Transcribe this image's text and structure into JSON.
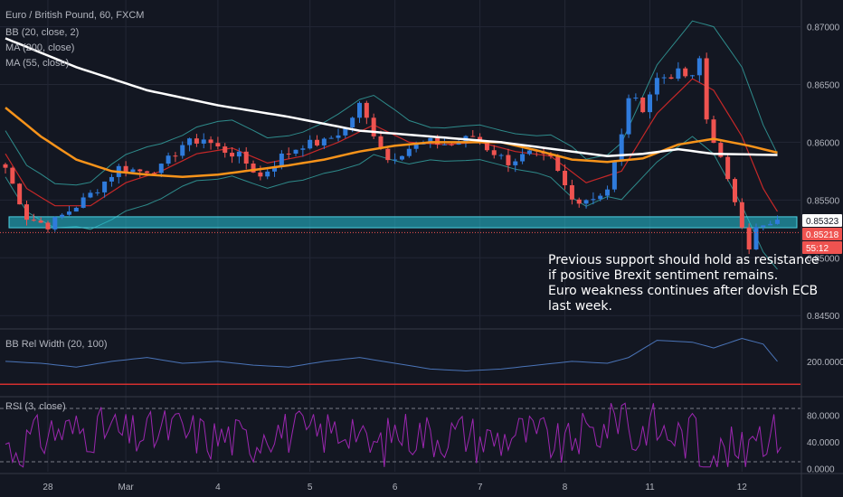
{
  "chart_data": {
    "type": "candlestick",
    "title": "Euro / British Pound, 60, FXCM",
    "indicator_labels": [
      "BB (20, close, 2)",
      "MA (200, close)",
      "MA (55, close)"
    ],
    "price_axis": {
      "min": 0.844,
      "max": 0.872,
      "ticks": [
        "0.87000",
        "0.86500",
        "0.86000",
        "0.85500",
        "0.85000",
        "0.84500"
      ]
    },
    "x_ticks": [
      {
        "label": "28",
        "bar": 6
      },
      {
        "label": "Mar",
        "bar": 17
      },
      {
        "label": "4",
        "bar": 30
      },
      {
        "label": "5",
        "bar": 43
      },
      {
        "label": "6",
        "bar": 55
      },
      {
        "label": "7",
        "bar": 67
      },
      {
        "label": "8",
        "bar": 79
      },
      {
        "label": "11",
        "bar": 91
      },
      {
        "label": "12",
        "bar": 104
      }
    ],
    "bar_count": 110,
    "price_waypoints": [
      [
        0,
        0.8578
      ],
      [
        3,
        0.8535
      ],
      [
        6,
        0.8528
      ],
      [
        10,
        0.8545
      ],
      [
        13,
        0.856
      ],
      [
        16,
        0.8578
      ],
      [
        19,
        0.8575
      ],
      [
        22,
        0.8578
      ],
      [
        25,
        0.8598
      ],
      [
        28,
        0.8603
      ],
      [
        30,
        0.8595
      ],
      [
        33,
        0.8588
      ],
      [
        36,
        0.857
      ],
      [
        39,
        0.8588
      ],
      [
        42,
        0.8598
      ],
      [
        45,
        0.86
      ],
      [
        48,
        0.8612
      ],
      [
        50,
        0.8632
      ],
      [
        52,
        0.8608
      ],
      [
        54,
        0.8585
      ],
      [
        57,
        0.8595
      ],
      [
        60,
        0.86
      ],
      [
        63,
        0.8598
      ],
      [
        66,
        0.8605
      ],
      [
        68,
        0.8595
      ],
      [
        71,
        0.8583
      ],
      [
        74,
        0.859
      ],
      [
        77,
        0.8585
      ],
      [
        80,
        0.855
      ],
      [
        83,
        0.8552
      ],
      [
        85,
        0.856
      ],
      [
        87,
        0.8605
      ],
      [
        88,
        0.864
      ],
      [
        90,
        0.863
      ],
      [
        92,
        0.8655
      ],
      [
        95,
        0.866
      ],
      [
        97,
        0.8655
      ],
      [
        98,
        0.8672
      ],
      [
        99,
        0.862
      ],
      [
        101,
        0.8585
      ],
      [
        102,
        0.8565
      ],
      [
        103,
        0.855
      ],
      [
        104,
        0.853
      ],
      [
        105,
        0.851
      ],
      [
        106,
        0.8525
      ],
      [
        108,
        0.8528
      ],
      [
        109,
        0.853
      ]
    ],
    "ma200_waypoints": [
      [
        0,
        0.869
      ],
      [
        10,
        0.8665
      ],
      [
        20,
        0.8645
      ],
      [
        30,
        0.8632
      ],
      [
        40,
        0.8622
      ],
      [
        50,
        0.861
      ],
      [
        60,
        0.8605
      ],
      [
        70,
        0.86
      ],
      [
        80,
        0.8592
      ],
      [
        85,
        0.8588
      ],
      [
        90,
        0.859
      ],
      [
        95,
        0.8594
      ],
      [
        100,
        0.859
      ],
      [
        109,
        0.8589
      ]
    ],
    "ma55_waypoints": [
      [
        0,
        0.863
      ],
      [
        5,
        0.8605
      ],
      [
        10,
        0.8585
      ],
      [
        15,
        0.8575
      ],
      [
        20,
        0.8572
      ],
      [
        25,
        0.857
      ],
      [
        30,
        0.8572
      ],
      [
        40,
        0.858
      ],
      [
        45,
        0.8585
      ],
      [
        50,
        0.8592
      ],
      [
        55,
        0.8597
      ],
      [
        60,
        0.86
      ],
      [
        70,
        0.86
      ],
      [
        75,
        0.8593
      ],
      [
        80,
        0.8585
      ],
      [
        85,
        0.8583
      ],
      [
        90,
        0.8586
      ],
      [
        95,
        0.8598
      ],
      [
        100,
        0.8603
      ],
      [
        105,
        0.8597
      ],
      [
        109,
        0.8591
      ]
    ],
    "bb_basis_waypoints": [
      [
        0,
        0.859
      ],
      [
        3,
        0.856
      ],
      [
        7,
        0.8545
      ],
      [
        12,
        0.8545
      ],
      [
        17,
        0.8565
      ],
      [
        22,
        0.8575
      ],
      [
        27,
        0.859
      ],
      [
        32,
        0.8595
      ],
      [
        37,
        0.8582
      ],
      [
        42,
        0.8588
      ],
      [
        47,
        0.86
      ],
      [
        52,
        0.8615
      ],
      [
        57,
        0.86
      ],
      [
        62,
        0.8598
      ],
      [
        67,
        0.86
      ],
      [
        72,
        0.8592
      ],
      [
        77,
        0.8588
      ],
      [
        82,
        0.8565
      ],
      [
        87,
        0.8575
      ],
      [
        92,
        0.8625
      ],
      [
        97,
        0.8655
      ],
      [
        100,
        0.8645
      ],
      [
        104,
        0.8605
      ],
      [
        107,
        0.856
      ],
      [
        109,
        0.854
      ]
    ],
    "bb_width_waypoints": [
      [
        0,
        0.002
      ],
      [
        5,
        0.002
      ],
      [
        10,
        0.0018
      ],
      [
        15,
        0.0024
      ],
      [
        20,
        0.0025
      ],
      [
        25,
        0.0022
      ],
      [
        30,
        0.0025
      ],
      [
        35,
        0.0023
      ],
      [
        40,
        0.002
      ],
      [
        45,
        0.0022
      ],
      [
        50,
        0.0028
      ],
      [
        55,
        0.0022
      ],
      [
        60,
        0.0014
      ],
      [
        65,
        0.0015
      ],
      [
        70,
        0.0015
      ],
      [
        75,
        0.0016
      ],
      [
        80,
        0.0022
      ],
      [
        85,
        0.0018
      ],
      [
        88,
        0.0028
      ],
      [
        92,
        0.0042
      ],
      [
        97,
        0.005
      ],
      [
        100,
        0.0055
      ],
      [
        104,
        0.006
      ],
      [
        107,
        0.0055
      ],
      [
        109,
        0.005
      ]
    ],
    "support_zone": {
      "top": 0.85355,
      "bottom": 0.8526
    },
    "current_price": 0.85218,
    "price_tags": [
      {
        "text": "0.85323",
        "value": 0.85323,
        "bg": "#ffffff",
        "fg": "#131722"
      },
      {
        "text": "0.85218",
        "value": 0.85218,
        "bg": "#ef5350",
        "fg": "#ffffff"
      },
      {
        "text": "55:12",
        "value": 0.85155,
        "bg": "#ef5350",
        "fg": "#ffffff"
      }
    ],
    "annotation": [
      "Previous support should hold as resistance",
      "if positive Brexit sentiment remains.",
      "Euro weakness continues after dovish ECB",
      "last week."
    ],
    "bbrw": {
      "label": "BB Rel Width (20, 100)",
      "ticks": [
        "200.0000"
      ],
      "waypoints": [
        [
          0,
          200
        ],
        [
          5,
          195
        ],
        [
          10,
          185
        ],
        [
          15,
          200
        ],
        [
          20,
          210
        ],
        [
          25,
          195
        ],
        [
          30,
          200
        ],
        [
          35,
          190
        ],
        [
          40,
          185
        ],
        [
          45,
          200
        ],
        [
          50,
          210
        ],
        [
          55,
          195
        ],
        [
          60,
          180
        ],
        [
          65,
          175
        ],
        [
          70,
          180
        ],
        [
          75,
          190
        ],
        [
          80,
          200
        ],
        [
          85,
          195
        ],
        [
          88,
          210
        ],
        [
          92,
          255
        ],
        [
          97,
          250
        ],
        [
          100,
          235
        ],
        [
          104,
          260
        ],
        [
          107,
          245
        ],
        [
          109,
          200
        ]
      ],
      "threshold": 140,
      "min": 110,
      "max": 280
    },
    "rsi": {
      "label": "RSI (3, close)",
      "ticks": [
        "80.0000",
        "40.0000",
        "0.0000"
      ],
      "levels": [
        90,
        10
      ],
      "min": -5,
      "max": 105
    },
    "colors": {
      "background": "#131722",
      "bull": "#2f7bdc",
      "bear": "#ef5350",
      "ma200": "#ffffff",
      "ma55": "#f7931a",
      "bb_basis": "#c62828",
      "bb_bands": "#2e8b8b",
      "zone": "#26c6da",
      "bbrw_line": "#4a74b8",
      "bbrw_threshold": "#d32f2f",
      "rsi_line": "#9c27b0",
      "grid": "#232735"
    }
  }
}
